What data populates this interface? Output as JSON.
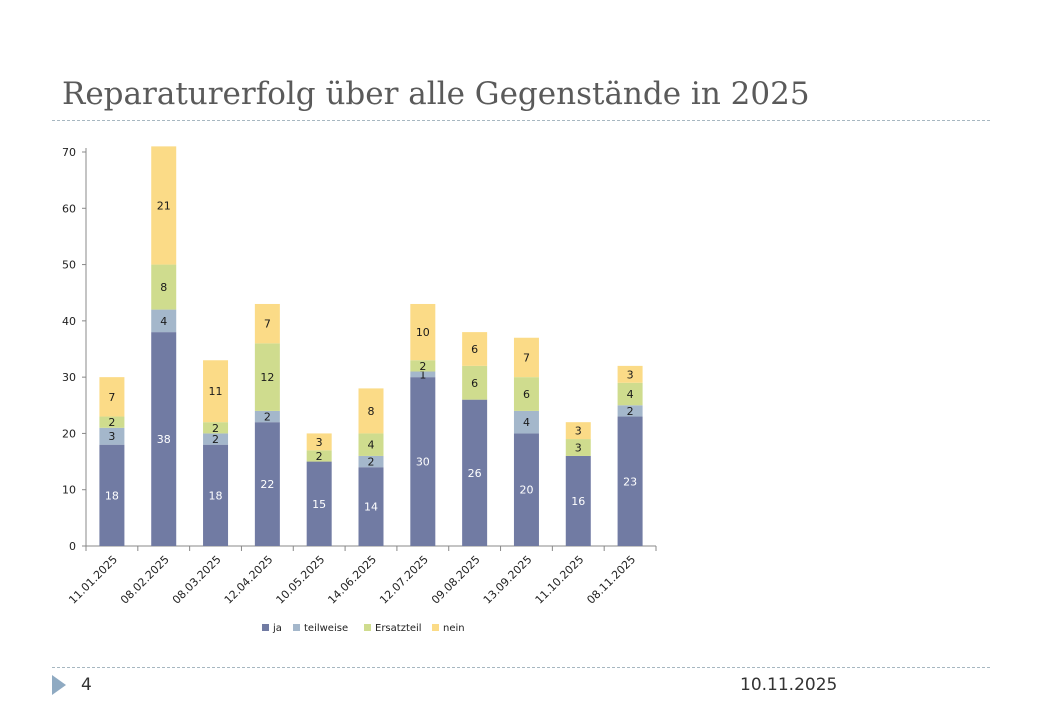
{
  "slide": {
    "title": "Reparaturerfolg über alle Gegenstände in 2025",
    "page_number": "4",
    "date": "10.11.2025"
  },
  "chart_data": {
    "type": "bar",
    "stacked": true,
    "categories": [
      "11.01.2025",
      "08.02.2025",
      "08.03.2025",
      "12.04.2025",
      "10.05.2025",
      "14.06.2025",
      "12.07.2025",
      "09.08.2025",
      "13.09.2025",
      "11.10.2025",
      "08.11.2025"
    ],
    "series": [
      {
        "name": "ja",
        "color": "#717ba3",
        "label_color": "#ffffff",
        "values": [
          18,
          38,
          18,
          22,
          15,
          14,
          30,
          26,
          20,
          16,
          23
        ]
      },
      {
        "name": "teilweise",
        "color": "#a4b7cb",
        "label_color": "#1a1a1a",
        "values": [
          3,
          4,
          2,
          2,
          0,
          2,
          1,
          0,
          4,
          0,
          2
        ]
      },
      {
        "name": "Ersatzteil",
        "color": "#cfdc8e",
        "label_color": "#1a1a1a",
        "values": [
          2,
          8,
          2,
          12,
          2,
          4,
          2,
          6,
          6,
          3,
          4
        ]
      },
      {
        "name": "nein",
        "color": "#fbdb87",
        "label_color": "#1a1a1a",
        "values": [
          7,
          21,
          11,
          7,
          3,
          8,
          10,
          6,
          7,
          3,
          3
        ]
      }
    ],
    "ylim": [
      0,
      70
    ],
    "yticks": [
      0,
      10,
      20,
      30,
      40,
      50,
      60,
      70
    ],
    "legend_position": "bottom"
  }
}
